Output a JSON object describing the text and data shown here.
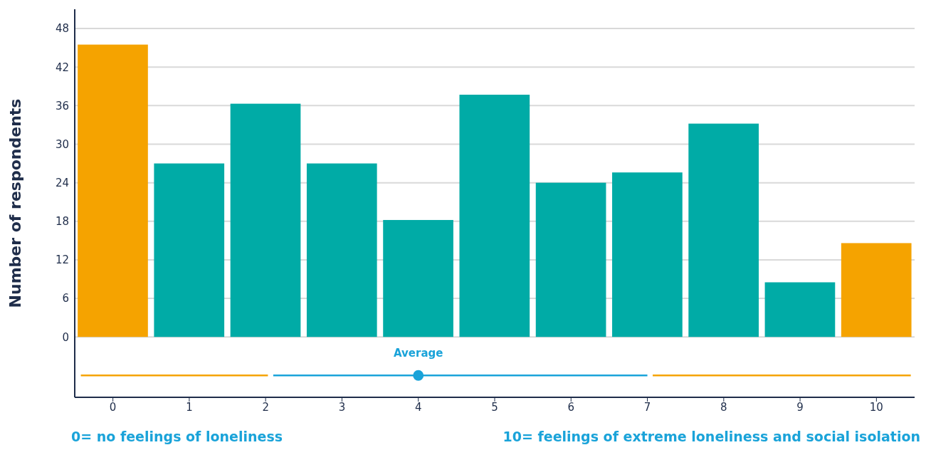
{
  "chart_data": {
    "type": "bar",
    "ylabel": "Number of respondents",
    "x": [
      0,
      1,
      2,
      3,
      4,
      5,
      6,
      7,
      8,
      9,
      10
    ],
    "xlim": [
      -0.5,
      10.5
    ],
    "xticks": [
      0,
      1,
      2,
      3,
      4,
      5,
      6,
      7,
      8,
      9,
      10
    ],
    "ylim": [
      -9.4,
      51
    ],
    "yticks": [
      0,
      6,
      12,
      18,
      24,
      30,
      36,
      42,
      48
    ],
    "grid": "y",
    "series": [
      {
        "values": [
          45.5,
          27,
          36.3,
          27,
          18.2,
          37.7,
          24,
          25.6,
          33.2,
          8.5,
          14.6
        ],
        "colors": [
          "#f5a300",
          "#00aba6",
          "#00aba6",
          "#00aba6",
          "#00aba6",
          "#00aba6",
          "#00aba6",
          "#00aba6",
          "#00aba6",
          "#00aba6",
          "#f5a300"
        ]
      },
      {
        "type": "line",
        "x": [
          -0.42,
          2.03
        ],
        "values": [
          -6,
          -6
        ],
        "color": "#f5a300"
      },
      {
        "type": "line",
        "x": [
          2.1,
          7.0
        ],
        "values": [
          -6,
          -6
        ],
        "color": "#1aa3d9"
      },
      {
        "type": "line",
        "x": [
          7.07,
          10.45
        ],
        "values": [
          -6,
          -6
        ],
        "color": "#f5a300"
      },
      {
        "type": "scatter",
        "name": "Average",
        "x": [
          4
        ],
        "values": [
          -6
        ],
        "color": "#1aa3d9",
        "marker": "circle"
      }
    ],
    "annotations": [
      "0= no feelings of loneliness",
      "10= feelings of extreme loneliness and social isolation"
    ]
  }
}
